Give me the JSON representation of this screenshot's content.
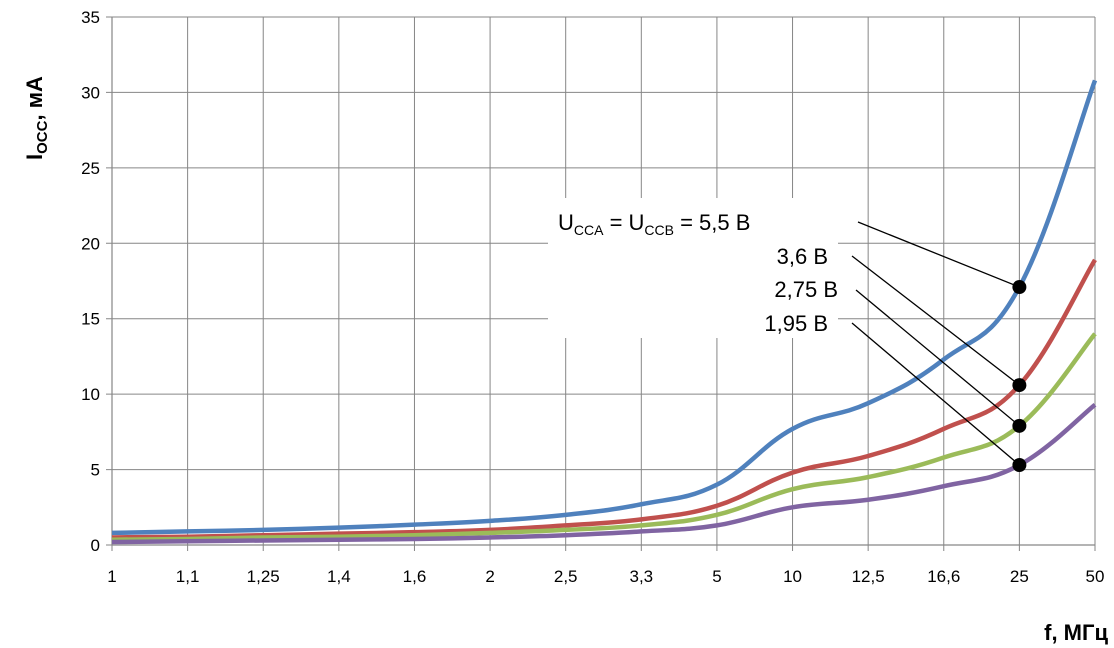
{
  "chart_data": {
    "type": "line",
    "title": "",
    "xlabel": "f, МГц",
    "ylabel_main": "I",
    "ylabel_sub": "OCC",
    "ylabel_rest": ", мА",
    "categories": [
      "1",
      "1,1",
      "1,25",
      "1,4",
      "1,6",
      "2",
      "2,5",
      "3,3",
      "5",
      "10",
      "12,5",
      "16,6",
      "25",
      "50"
    ],
    "yticks": [
      "0",
      "5",
      "10",
      "15",
      "20",
      "25",
      "30",
      "35"
    ],
    "ylim": [
      0,
      35
    ],
    "grid": true,
    "series": [
      {
        "name": "5,5 В",
        "color": "#4F81BD",
        "values": [
          0.8,
          0.9,
          1.0,
          1.15,
          1.35,
          1.6,
          2.0,
          2.7,
          4.0,
          7.7,
          9.4,
          12.3,
          17.1,
          30.8
        ]
      },
      {
        "name": "3,6 В",
        "color": "#C0504D",
        "values": [
          0.5,
          0.55,
          0.65,
          0.75,
          0.85,
          1.0,
          1.3,
          1.7,
          2.6,
          4.8,
          5.9,
          7.7,
          10.6,
          18.9
        ]
      },
      {
        "name": "2,75 В",
        "color": "#9BBB59",
        "values": [
          0.35,
          0.4,
          0.5,
          0.55,
          0.65,
          0.8,
          1.0,
          1.3,
          2.0,
          3.7,
          4.5,
          5.8,
          7.9,
          14.0
        ]
      },
      {
        "name": "1,95 В",
        "color": "#8064A2",
        "values": [
          0.2,
          0.25,
          0.3,
          0.35,
          0.4,
          0.5,
          0.65,
          0.9,
          1.3,
          2.5,
          3.0,
          3.9,
          5.3,
          9.3
        ]
      }
    ],
    "annotation": {
      "u_a": "U",
      "u_a_sub": "CCA",
      "eq1": " = U",
      "u_b_sub": "CCB",
      "eq2": " = 5,5 В",
      "labels": [
        "3,6 В",
        "2,75 В",
        "1,95 В"
      ],
      "marker_category_index": 12
    }
  }
}
